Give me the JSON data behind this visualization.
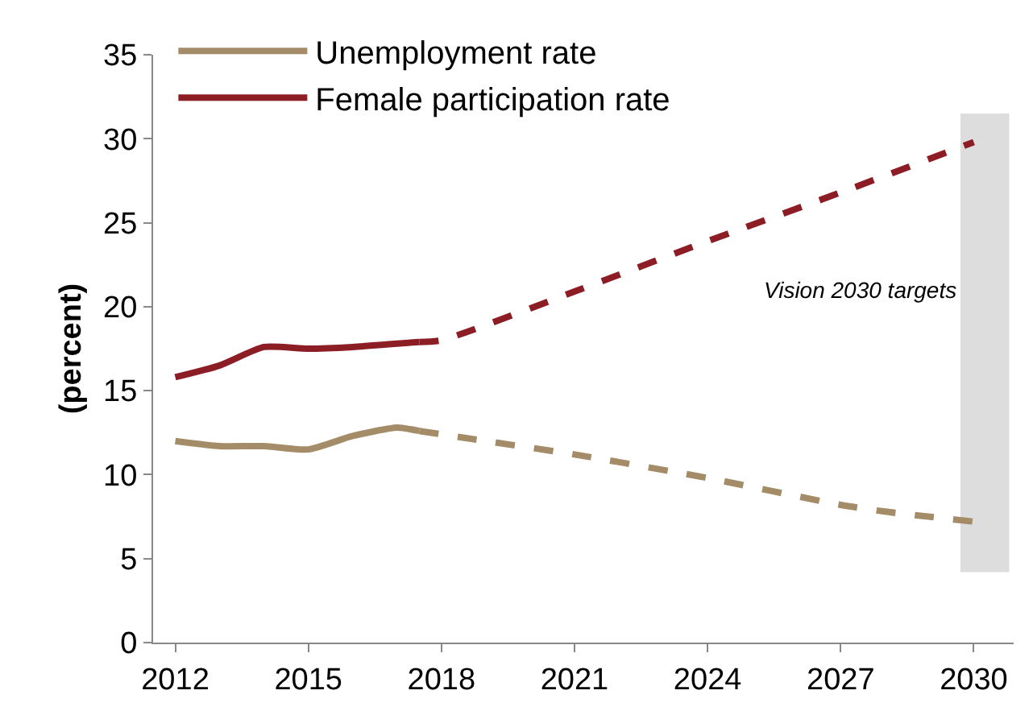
{
  "chart_data": {
    "type": "line",
    "ylabel": "(percent)",
    "series": [
      {
        "name": "Unemployment rate",
        "color": "#a38c67",
        "line_style": "solid",
        "x": [
          2012,
          2013,
          2014,
          2015,
          2016,
          2017,
          2017.5
        ],
        "values": [
          12.0,
          11.7,
          11.7,
          11.5,
          12.3,
          12.8,
          12.6
        ]
      },
      {
        "name": "Female participation rate",
        "color": "#8c1d24",
        "line_style": "solid",
        "x": [
          2012,
          2013,
          2014,
          2015,
          2016,
          2017,
          2017.5
        ],
        "values": [
          15.8,
          16.5,
          17.6,
          17.5,
          17.6,
          17.8,
          17.9
        ]
      },
      {
        "color": "#a38c67",
        "line_style": "dashed",
        "x": [
          2017.5,
          2019,
          2021,
          2024,
          2027,
          2028,
          2030
        ],
        "values": [
          12.6,
          12.0,
          11.2,
          9.8,
          8.2,
          7.8,
          7.2
        ]
      },
      {
        "color": "#8c1d24",
        "line_style": "dashed",
        "x": [
          2017.5,
          2018,
          2021,
          2024,
          2027,
          2030
        ],
        "values": [
          17.9,
          18.0,
          20.9,
          23.9,
          26.8,
          29.8
        ]
      }
    ],
    "xlim": [
      2011.5,
      2030.9
    ],
    "xticks": [
      2012,
      2015,
      2018,
      2021,
      2024,
      2027,
      2030
    ],
    "ylim": [
      0,
      35
    ],
    "yticks": [
      0,
      5,
      10,
      15,
      20,
      25,
      30,
      35
    ],
    "bands": [
      {
        "axis": "x",
        "from": 2029.7,
        "to": 2030.8,
        "label": "Vision 2030 targets",
        "color": "#dddddd"
      }
    ],
    "legend": "top left",
    "grid": false,
    "marker": "none"
  }
}
